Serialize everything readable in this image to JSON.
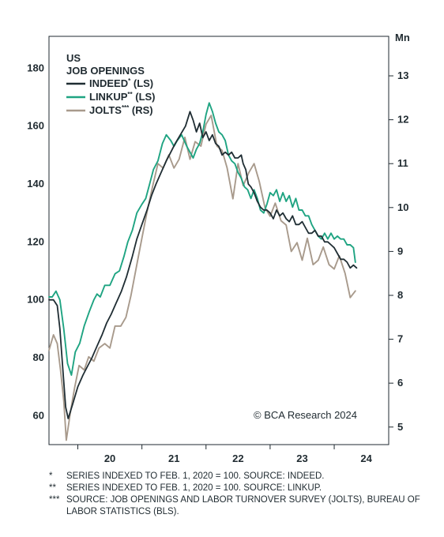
{
  "chart_data": {
    "type": "line",
    "legend": {
      "title_line1": "US",
      "title_line2": "JOB OPENINGS",
      "placement": "top-left",
      "entries": [
        {
          "key": "indeed",
          "name": "INDEED",
          "sup": "*",
          "suffix": " (LS)",
          "color": "#1f2d33"
        },
        {
          "key": "linkup",
          "name": "LINKUP",
          "sup": "**",
          "suffix": " (LS)",
          "color": "#1fa482"
        },
        {
          "key": "jolts",
          "name": "JOLTS",
          "sup": "***",
          "suffix": " (RS)",
          "color": "#a89a8c"
        }
      ]
    },
    "left_axis": {
      "ticks": [
        "60",
        "80",
        "100",
        "120",
        "140",
        "160",
        "180"
      ],
      "tick_values": [
        60,
        80,
        100,
        120,
        140,
        160,
        180
      ],
      "range": [
        50,
        191
      ]
    },
    "right_axis": {
      "label": "Mn",
      "ticks": [
        "5",
        "6",
        "7",
        "8",
        "9",
        "10",
        "11",
        "12",
        "13"
      ],
      "tick_values": [
        5,
        6,
        7,
        8,
        9,
        10,
        11,
        12,
        13
      ],
      "range": [
        4.6,
        13.9
      ]
    },
    "x_axis": {
      "ticks": [
        "20",
        "21",
        "22",
        "23",
        "24"
      ],
      "tick_positions": [
        2020.5,
        2021.5,
        2022.5,
        2023.5,
        2024.5
      ],
      "boundaries": [
        2020,
        2021,
        2022,
        2023,
        2024
      ],
      "range": [
        2019.55,
        2024.85
      ]
    },
    "grid": false,
    "credit": "© BCA Research 2024",
    "series": [
      {
        "key": "indeed",
        "axis": "left",
        "points": [
          [
            2019.55,
            100
          ],
          [
            2019.62,
            100
          ],
          [
            2019.68,
            98
          ],
          [
            2019.72,
            90
          ],
          [
            2019.77,
            75
          ],
          [
            2019.81,
            63
          ],
          [
            2019.85,
            59
          ],
          [
            2019.92,
            64
          ],
          [
            2020.0,
            70
          ],
          [
            2020.08,
            74
          ],
          [
            2020.15,
            77
          ],
          [
            2020.22,
            80
          ],
          [
            2020.3,
            84
          ],
          [
            2020.38,
            88
          ],
          [
            2020.45,
            92
          ],
          [
            2020.52,
            95
          ],
          [
            2020.6,
            99
          ],
          [
            2020.68,
            103
          ],
          [
            2020.76,
            108
          ],
          [
            2020.85,
            115
          ],
          [
            2020.92,
            121
          ],
          [
            2021.0,
            126
          ],
          [
            2021.08,
            131
          ],
          [
            2021.15,
            136
          ],
          [
            2021.22,
            140
          ],
          [
            2021.3,
            144
          ],
          [
            2021.38,
            148
          ],
          [
            2021.45,
            151
          ],
          [
            2021.52,
            154
          ],
          [
            2021.6,
            157
          ],
          [
            2021.68,
            160
          ],
          [
            2021.75,
            165
          ],
          [
            2021.8,
            162
          ],
          [
            2021.85,
            158
          ],
          [
            2021.9,
            161
          ],
          [
            2021.95,
            156
          ],
          [
            2022.0,
            158
          ],
          [
            2022.05,
            155
          ],
          [
            2022.1,
            157
          ],
          [
            2022.15,
            154
          ],
          [
            2022.2,
            153
          ],
          [
            2022.25,
            150
          ],
          [
            2022.3,
            151
          ],
          [
            2022.35,
            150
          ],
          [
            2022.4,
            151
          ],
          [
            2022.45,
            149
          ],
          [
            2022.5,
            149
          ],
          [
            2022.55,
            150
          ],
          [
            2022.58,
            147
          ],
          [
            2022.62,
            145
          ],
          [
            2022.66,
            140
          ],
          [
            2022.7,
            139
          ],
          [
            2022.75,
            137
          ],
          [
            2022.8,
            134
          ],
          [
            2022.85,
            132
          ],
          [
            2022.9,
            131
          ],
          [
            2022.95,
            131
          ],
          [
            2023.0,
            130
          ],
          [
            2023.05,
            128
          ],
          [
            2023.1,
            131
          ],
          [
            2023.15,
            129
          ],
          [
            2023.2,
            130
          ],
          [
            2023.25,
            128
          ],
          [
            2023.3,
            127
          ],
          [
            2023.35,
            129
          ],
          [
            2023.4,
            126
          ],
          [
            2023.45,
            126
          ],
          [
            2023.5,
            127
          ],
          [
            2023.55,
            125
          ],
          [
            2023.6,
            123
          ],
          [
            2023.65,
            123
          ],
          [
            2023.7,
            124
          ],
          [
            2023.75,
            122
          ],
          [
            2023.8,
            122
          ],
          [
            2023.85,
            120
          ],
          [
            2023.9,
            120
          ],
          [
            2023.95,
            119
          ],
          [
            2024.0,
            118
          ],
          [
            2024.05,
            116
          ],
          [
            2024.1,
            114
          ],
          [
            2024.15,
            114
          ],
          [
            2024.2,
            113
          ],
          [
            2024.25,
            111
          ],
          [
            2024.3,
            112
          ],
          [
            2024.35,
            111
          ]
        ]
      },
      {
        "key": "linkup",
        "axis": "left",
        "points": [
          [
            2019.55,
            101
          ],
          [
            2019.6,
            101
          ],
          [
            2019.66,
            103
          ],
          [
            2019.72,
            100
          ],
          [
            2019.78,
            90
          ],
          [
            2019.84,
            78
          ],
          [
            2019.9,
            74
          ],
          [
            2019.96,
            82
          ],
          [
            2020.03,
            85
          ],
          [
            2020.1,
            91
          ],
          [
            2020.18,
            96
          ],
          [
            2020.25,
            100
          ],
          [
            2020.3,
            102
          ],
          [
            2020.35,
            101
          ],
          [
            2020.42,
            105
          ],
          [
            2020.5,
            105
          ],
          [
            2020.58,
            109
          ],
          [
            2020.65,
            110
          ],
          [
            2020.72,
            115
          ],
          [
            2020.78,
            120
          ],
          [
            2020.85,
            124
          ],
          [
            2020.92,
            130
          ],
          [
            2021.0,
            133
          ],
          [
            2021.06,
            135
          ],
          [
            2021.12,
            140
          ],
          [
            2021.18,
            145
          ],
          [
            2021.25,
            148
          ],
          [
            2021.32,
            154
          ],
          [
            2021.38,
            157
          ],
          [
            2021.45,
            155
          ],
          [
            2021.5,
            153
          ],
          [
            2021.55,
            155
          ],
          [
            2021.62,
            157
          ],
          [
            2021.7,
            153
          ],
          [
            2021.75,
            151
          ],
          [
            2021.8,
            149
          ],
          [
            2021.85,
            152
          ],
          [
            2021.9,
            154
          ],
          [
            2021.95,
            158
          ],
          [
            2022.0,
            164
          ],
          [
            2022.05,
            168
          ],
          [
            2022.1,
            165
          ],
          [
            2022.15,
            161
          ],
          [
            2022.2,
            158
          ],
          [
            2022.25,
            157
          ],
          [
            2022.3,
            155
          ],
          [
            2022.35,
            150
          ],
          [
            2022.4,
            148
          ],
          [
            2022.45,
            147
          ],
          [
            2022.5,
            144
          ],
          [
            2022.55,
            142
          ],
          [
            2022.6,
            139
          ],
          [
            2022.65,
            138
          ],
          [
            2022.7,
            135
          ],
          [
            2022.75,
            138
          ],
          [
            2022.8,
            135
          ],
          [
            2022.85,
            131
          ],
          [
            2022.9,
            130
          ],
          [
            2022.95,
            133
          ],
          [
            2023.0,
            137
          ],
          [
            2023.05,
            136
          ],
          [
            2023.1,
            138
          ],
          [
            2023.15,
            134
          ],
          [
            2023.2,
            137
          ],
          [
            2023.25,
            134
          ],
          [
            2023.3,
            136
          ],
          [
            2023.35,
            132
          ],
          [
            2023.4,
            135
          ],
          [
            2023.45,
            131
          ],
          [
            2023.5,
            131
          ],
          [
            2023.55,
            129
          ],
          [
            2023.6,
            129
          ],
          [
            2023.65,
            126
          ],
          [
            2023.7,
            124
          ],
          [
            2023.75,
            122
          ],
          [
            2023.8,
            121
          ],
          [
            2023.85,
            123
          ],
          [
            2023.9,
            121
          ],
          [
            2023.95,
            123
          ],
          [
            2024.0,
            121
          ],
          [
            2024.05,
            122
          ],
          [
            2024.1,
            121
          ],
          [
            2024.15,
            121
          ],
          [
            2024.2,
            119
          ],
          [
            2024.25,
            119
          ],
          [
            2024.3,
            118
          ],
          [
            2024.33,
            113
          ]
        ]
      },
      {
        "key": "jolts",
        "axis": "right",
        "points": [
          [
            2019.55,
            6.75
          ],
          [
            2019.62,
            7.1
          ],
          [
            2019.68,
            6.9
          ],
          [
            2019.73,
            6.3
          ],
          [
            2019.78,
            5.6
          ],
          [
            2019.82,
            4.7
          ],
          [
            2019.88,
            5.3
          ],
          [
            2019.95,
            5.9
          ],
          [
            2020.02,
            6.4
          ],
          [
            2020.1,
            6.3
          ],
          [
            2020.17,
            6.6
          ],
          [
            2020.25,
            6.5
          ],
          [
            2020.33,
            6.8
          ],
          [
            2020.42,
            6.9
          ],
          [
            2020.5,
            6.8
          ],
          [
            2020.58,
            7.3
          ],
          [
            2020.67,
            7.3
          ],
          [
            2020.75,
            7.5
          ],
          [
            2020.83,
            8.0
          ],
          [
            2020.92,
            8.7
          ],
          [
            2021.0,
            9.3
          ],
          [
            2021.08,
            9.9
          ],
          [
            2021.17,
            10.5
          ],
          [
            2021.25,
            11.0
          ],
          [
            2021.33,
            10.9
          ],
          [
            2021.42,
            11.2
          ],
          [
            2021.5,
            10.9
          ],
          [
            2021.58,
            11.1
          ],
          [
            2021.67,
            11.6
          ],
          [
            2021.75,
            11.1
          ],
          [
            2021.83,
            11.5
          ],
          [
            2021.92,
            11.4
          ],
          [
            2022.0,
            11.9
          ],
          [
            2022.08,
            12.1
          ],
          [
            2022.17,
            11.4
          ],
          [
            2022.25,
            11.3
          ],
          [
            2022.33,
            10.9
          ],
          [
            2022.42,
            10.2
          ],
          [
            2022.5,
            11.0
          ],
          [
            2022.58,
            10.5
          ],
          [
            2022.67,
            10.8
          ],
          [
            2022.75,
            11.0
          ],
          [
            2022.83,
            10.6
          ],
          [
            2022.92,
            10.0
          ],
          [
            2023.0,
            9.8
          ],
          [
            2023.08,
            10.1
          ],
          [
            2023.17,
            9.7
          ],
          [
            2023.25,
            9.6
          ],
          [
            2023.33,
            9.0
          ],
          [
            2023.42,
            9.2
          ],
          [
            2023.5,
            8.8
          ],
          [
            2023.58,
            9.3
          ],
          [
            2023.67,
            8.7
          ],
          [
            2023.75,
            8.8
          ],
          [
            2023.83,
            9.1
          ],
          [
            2023.92,
            8.7
          ],
          [
            2024.0,
            8.6
          ],
          [
            2024.08,
            8.9
          ],
          [
            2024.17,
            8.5
          ],
          [
            2024.25,
            7.95
          ],
          [
            2024.33,
            8.1
          ]
        ]
      }
    ]
  },
  "notes": [
    {
      "mark": "*",
      "text": "SERIES INDEXED TO FEB. 1, 2020 = 100. SOURCE: INDEED."
    },
    {
      "mark": "**",
      "text": "SERIES INDEXED TO FEB. 1, 2020 = 100. SOURCE: LINKUP."
    },
    {
      "mark": "***",
      "text": "SOURCE: JOB OPENINGS AND LABOR TURNOVER SURVEY (JOLTS), BUREAU OF LABOR STATISTICS (BLS)."
    }
  ]
}
